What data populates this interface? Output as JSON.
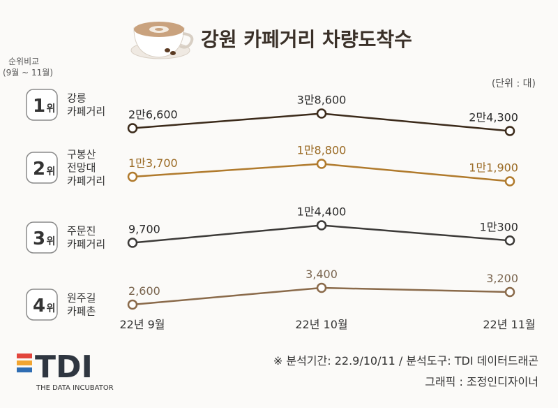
{
  "title": "강원 카페거리 차량도착수",
  "rank_note": [
    "순위비교",
    "(9월 ~ 11월)"
  ],
  "unit": "(단위 : 대)",
  "footer": {
    "period": "※ 분석기간:  22.9/10/11 / 분석도구: TDI 데이터드래곤",
    "graphic": "그래픽 : 조정인디자이너"
  },
  "logo": {
    "text": "TDI",
    "subtitle": "THE DATA INCUBATOR"
  },
  "rank_suffix": "위",
  "colors": {
    "series": [
      "#3b2a1a",
      "#b07a2c",
      "#3c3a38",
      "#8a6a4a"
    ],
    "labels": [
      "#2b2b2b",
      "#9a6a24",
      "#2b2b2b",
      "#7a654f"
    ],
    "logo_bars": [
      "#e2453c",
      "#f2a531",
      "#2f6db3"
    ]
  },
  "chart_data": {
    "type": "line",
    "categories": [
      "22년 9월",
      "22년 10월",
      "22년 11월"
    ],
    "series": [
      {
        "rank": "1",
        "name": [
          "강릉",
          "카페거리"
        ],
        "values": [
          26600,
          38600,
          24300
        ],
        "labels": [
          "2만6,600",
          "3만8,600",
          "2만4,300"
        ]
      },
      {
        "rank": "2",
        "name": [
          "구봉산",
          "전망대",
          "카페거리"
        ],
        "values": [
          13700,
          18800,
          11900
        ],
        "labels": [
          "1만3,700",
          "1만8,800",
          "1만1,900"
        ]
      },
      {
        "rank": "3",
        "name": [
          "주문진",
          "카페거리"
        ],
        "values": [
          9700,
          14400,
          10300
        ],
        "labels": [
          "9,700",
          "1만4,400",
          "1만300"
        ]
      },
      {
        "rank": "4",
        "name": [
          "원주길",
          "카페촌"
        ],
        "values": [
          2600,
          3400,
          3200
        ],
        "labels": [
          "2,600",
          "3,400",
          "3,200"
        ]
      }
    ]
  }
}
